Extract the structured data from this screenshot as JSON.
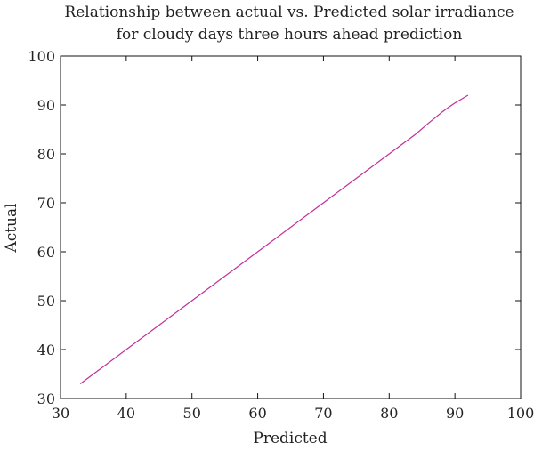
{
  "chart_data": {
    "type": "line",
    "title_line1": "Relationship between actual vs. Predicted solar irradiance",
    "title_line2": "for cloudy days three hours ahead prediction",
    "xlabel": "Predicted",
    "ylabel": "Actual",
    "xlim": [
      30,
      100
    ],
    "ylim": [
      30,
      100
    ],
    "xticks": [
      30,
      40,
      50,
      60,
      70,
      80,
      90,
      100
    ],
    "yticks": [
      30,
      40,
      50,
      60,
      70,
      80,
      90,
      100
    ],
    "grid": false,
    "series": [
      {
        "color": "#c0309a",
        "x": [
          33,
          40,
          50,
          60,
          70,
          80,
          84,
          86,
          88,
          89,
          90,
          91,
          92
        ],
        "y": [
          33,
          40,
          50,
          60,
          70,
          80,
          84,
          86.3,
          88.5,
          89.5,
          90.4,
          91.2,
          92
        ]
      }
    ]
  }
}
